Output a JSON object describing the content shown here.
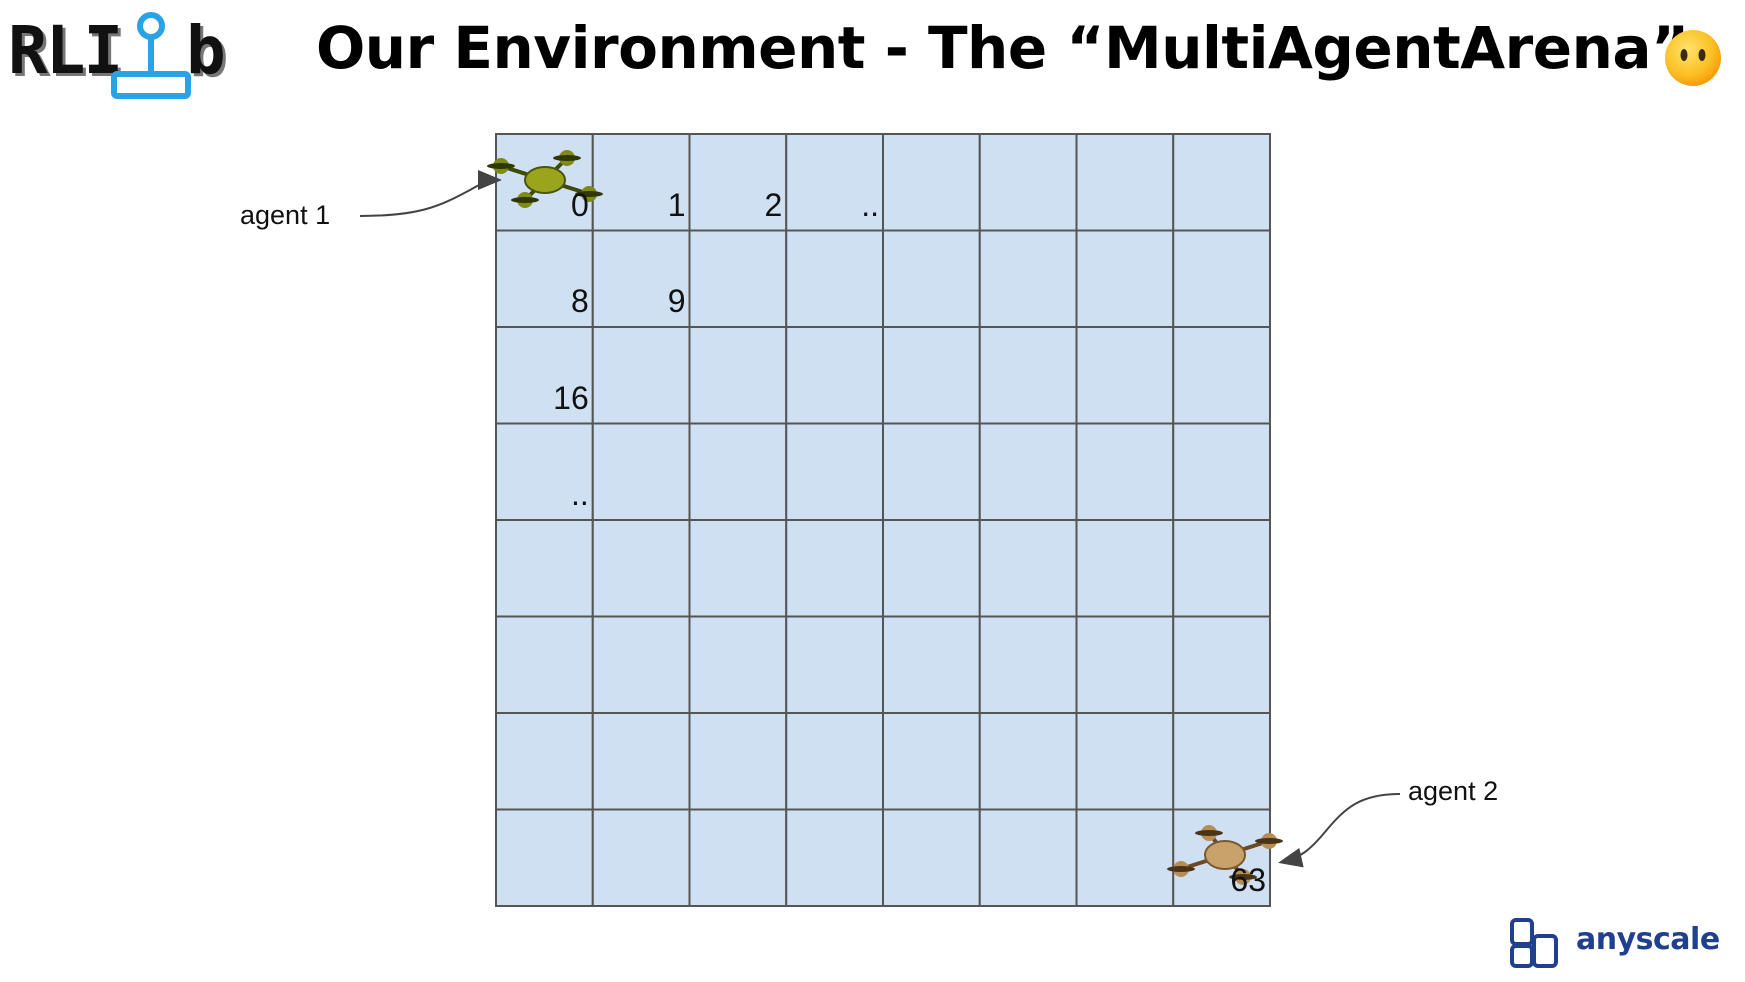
{
  "header": {
    "logo_text_left": "RLI",
    "logo_text_right": "b",
    "title": "Our Environment - The “MultiAgentArena”",
    "emoji_name": "face-without-mouth-icon"
  },
  "grid": {
    "rows": 8,
    "cols": 8,
    "cell_color": "#cfe0f3",
    "line_color": "#555555",
    "cell_labels": [
      {
        "row": 0,
        "col": 0,
        "text": "0"
      },
      {
        "row": 0,
        "col": 1,
        "text": "1"
      },
      {
        "row": 0,
        "col": 2,
        "text": "2"
      },
      {
        "row": 0,
        "col": 3,
        "text": ".."
      },
      {
        "row": 1,
        "col": 0,
        "text": "8"
      },
      {
        "row": 1,
        "col": 1,
        "text": "9"
      },
      {
        "row": 2,
        "col": 0,
        "text": "16"
      },
      {
        "row": 3,
        "col": 0,
        "text": ".."
      },
      {
        "row": 7,
        "col": 7,
        "text": "63"
      }
    ]
  },
  "agents": [
    {
      "label": "agent 1",
      "drone_color": "#9aa51b",
      "cell": 0
    },
    {
      "label": "agent 2",
      "drone_color": "#c9a26b",
      "cell": 63
    }
  ],
  "footer": {
    "brand_text": "anyscale",
    "brand_color": "#1f3f8f"
  }
}
